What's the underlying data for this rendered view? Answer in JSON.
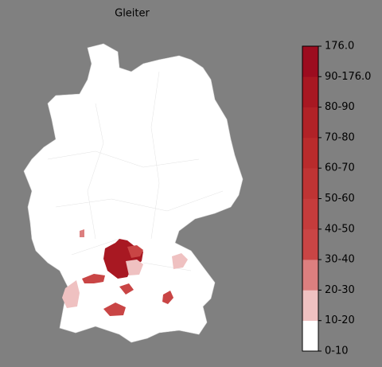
{
  "title": "Gleiter",
  "colorbar": {
    "ticks": [
      "0-10",
      "10-20",
      "20-30",
      "30-40",
      "40-50",
      "50-60",
      "60-70",
      "70-80",
      "80-90",
      "90-176.0",
      "176.0"
    ],
    "colors": [
      "#ffffff",
      "#efc1c1",
      "#dc7f7f",
      "#c94545",
      "#c53c3c",
      "#bf3434",
      "#b92b2c",
      "#b12227",
      "#a81822",
      "#9c0c1f"
    ]
  }
}
